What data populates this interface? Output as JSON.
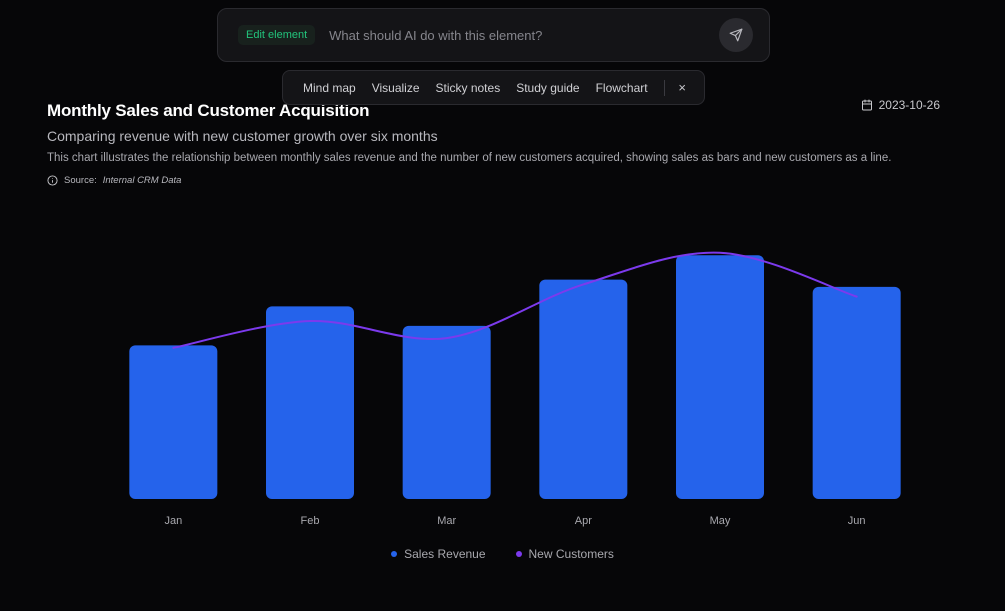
{
  "prompt_bar": {
    "chip_label": "Edit element",
    "input_placeholder": "What should AI do with this element?",
    "input_value": "",
    "send_icon": "send-icon"
  },
  "action_bar": {
    "items": [
      "Mind map",
      "Visualize",
      "Sticky notes",
      "Study guide",
      "Flowchart"
    ],
    "close_label": "×"
  },
  "header": {
    "title": "Monthly Sales and Customer Acquisition",
    "subtitle": "Comparing revenue with new customer growth over six months",
    "description": "This chart illustrates the relationship between monthly sales revenue and the number of new customers acquired, showing sales as bars and new customers as a line.",
    "date": "2023-10-26",
    "date_icon": "calendar-icon",
    "source_label": "Source:",
    "source_value": "Internal CRM Data",
    "source_icon": "info-icon"
  },
  "colors": {
    "bar": "#2563eb",
    "line": "#7c3aed",
    "background": "#060608",
    "accent_green": "#22c47c"
  },
  "chart_data": {
    "type": "bar",
    "categories": [
      "Jan",
      "Feb",
      "Mar",
      "Apr",
      "May",
      "Jun"
    ],
    "series": [
      {
        "name": "Sales Revenue",
        "type": "bar",
        "values": [
          63,
          79,
          71,
          90,
          100,
          87
        ]
      },
      {
        "name": "New Customers",
        "type": "line",
        "smooth": true,
        "values": [
          62,
          73,
          66,
          88,
          101,
          83
        ]
      }
    ],
    "ylim": [
      0,
      105
    ],
    "grid": false,
    "y_axis_visible": false,
    "legend_position": "bottom-center"
  }
}
